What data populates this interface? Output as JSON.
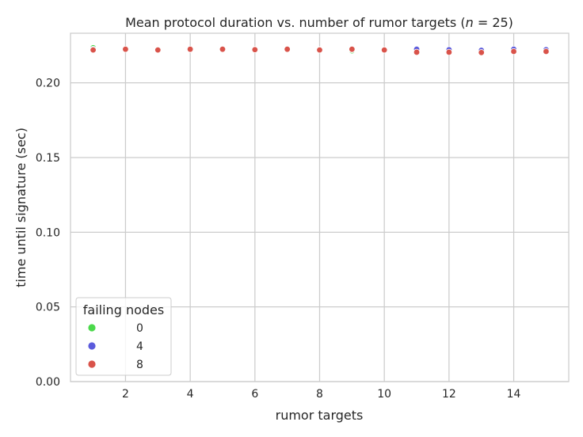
{
  "chart_data": {
    "type": "scatter",
    "title": "Mean protocol duration vs. number of rumor targets (n = 25)",
    "title_prefix": "Mean protocol duration vs. number of rumor targets (",
    "title_n": "n",
    "title_suffix": " = 25)",
    "xlabel": "rumor targets",
    "ylabel": "time until signature (sec)",
    "xlim": [
      0.3,
      15.7
    ],
    "ylim": [
      0.0,
      0.2332
    ],
    "xticks": [
      2,
      4,
      6,
      8,
      10,
      12,
      14
    ],
    "yticks": [
      0.0,
      0.05,
      0.1,
      0.15,
      0.2
    ],
    "ytick_labels": [
      "0.00",
      "0.05",
      "0.10",
      "0.15",
      "0.20"
    ],
    "grid": true,
    "legend": {
      "title": "failing nodes",
      "placement": "lower-left"
    },
    "series": [
      {
        "name": "0",
        "color": "#4bd94b",
        "x": [
          1,
          2,
          3,
          4,
          5,
          6,
          7,
          8,
          9,
          10,
          11,
          12,
          13,
          14,
          15
        ],
        "y": [
          0.2235,
          0.2225,
          0.222,
          0.2225,
          0.2228,
          0.2225,
          0.2225,
          0.2222,
          0.2215,
          0.222,
          0.2215,
          0.2215,
          0.2208,
          0.222,
          0.2215
        ]
      },
      {
        "name": "4",
        "color": "#5b5bdc",
        "x": [
          1,
          2,
          3,
          4,
          5,
          6,
          7,
          8,
          9,
          10,
          11,
          12,
          13,
          14,
          15
        ],
        "y": [
          0.2225,
          0.2225,
          0.2222,
          0.2222,
          0.2225,
          0.2222,
          0.2225,
          0.2222,
          0.2222,
          0.222,
          0.2225,
          0.2222,
          0.2218,
          0.2225,
          0.2222
        ]
      },
      {
        "name": "8",
        "color": "#d9534a",
        "x": [
          1,
          2,
          3,
          4,
          5,
          6,
          7,
          8,
          9,
          10,
          11,
          12,
          13,
          14,
          15
        ],
        "y": [
          0.222,
          0.2225,
          0.222,
          0.2225,
          0.2225,
          0.2222,
          0.2225,
          0.222,
          0.2225,
          0.222,
          0.2205,
          0.2205,
          0.2203,
          0.221,
          0.221
        ]
      }
    ]
  }
}
